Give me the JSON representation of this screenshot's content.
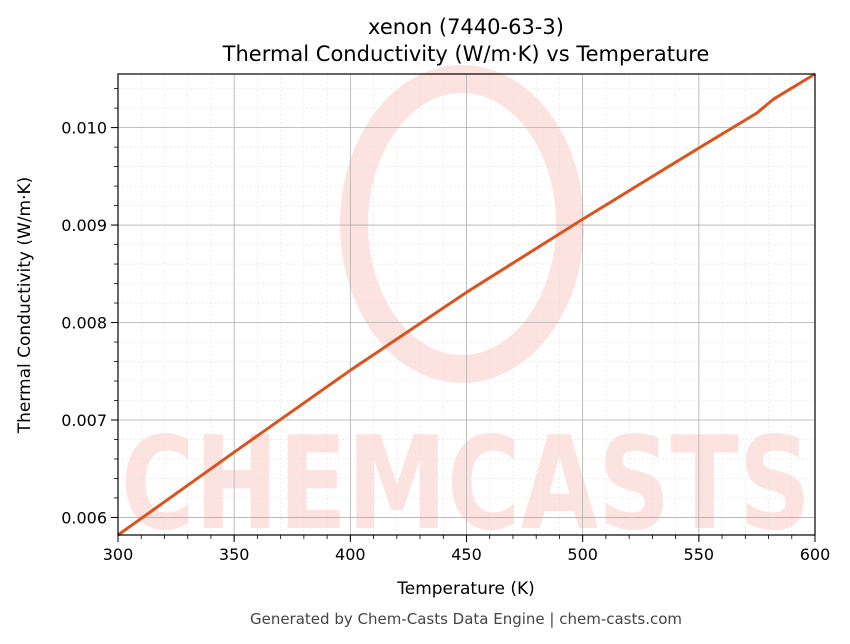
{
  "chart_data": {
    "type": "line",
    "title": "xenon (7440-63-3)",
    "subtitle": "Thermal Conductivity (W/m·K) vs Temperature",
    "xlabel": "Temperature (K)",
    "ylabel": "Thermal Conductivity (W/m·K)",
    "xlim": [
      300,
      600
    ],
    "ylim": [
      0.00582,
      0.01055
    ],
    "xticks": [
      300,
      350,
      400,
      450,
      500,
      550,
      600
    ],
    "xtick_labels": [
      "300",
      "350",
      "400",
      "450",
      "500",
      "550",
      "600"
    ],
    "yticks": [
      0.006,
      0.007,
      0.008,
      0.009,
      0.01
    ],
    "ytick_labels": [
      "0.006",
      "0.007",
      "0.008",
      "0.009",
      "0.010"
    ],
    "grid": true,
    "series": [
      {
        "color": "#d9541e",
        "x": [
          300,
          350,
          400,
          450,
          500,
          550,
          575,
          582,
          600
        ],
        "y": [
          0.00582,
          0.00667,
          0.00751,
          0.00831,
          0.00906,
          0.00979,
          0.01015,
          0.01029,
          0.01055
        ]
      }
    ]
  },
  "watermark": {
    "text": "CHEMCASTS",
    "color": "#fde3df"
  },
  "footer": "Generated by Chem-Casts Data Engine | chem-casts.com"
}
